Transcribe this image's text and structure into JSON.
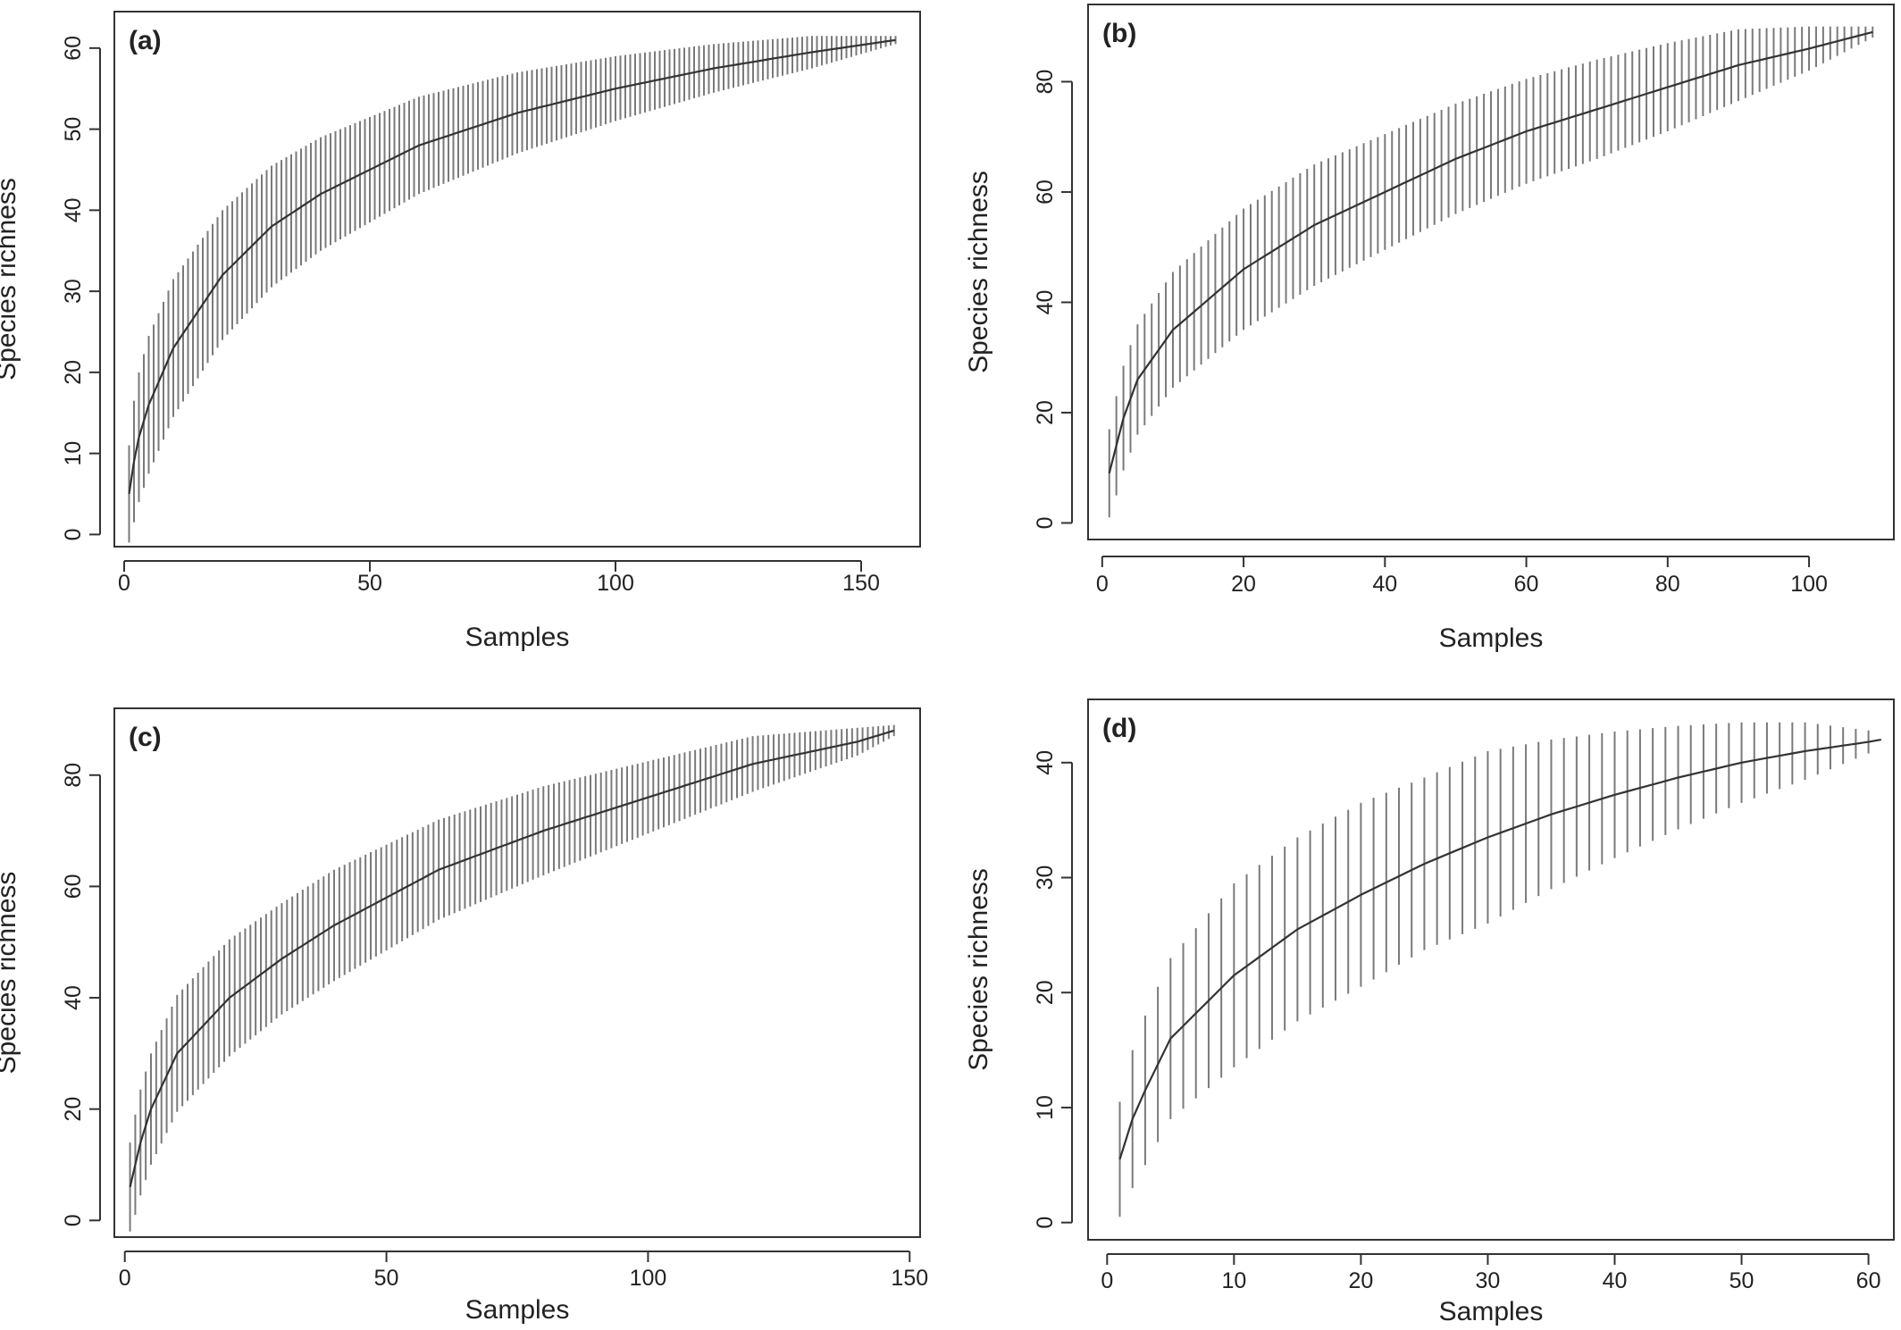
{
  "figure": {
    "colors": {
      "ink": "#333333",
      "error_bar": "#7a7a7a",
      "background": "#ffffff"
    }
  },
  "chart_data": [
    {
      "panel_label": "(a)",
      "type": "line",
      "curve": "species accumulation (mean) with ±SD vertical error bars",
      "xlabel": "Samples",
      "ylabel": "Species richness",
      "xlim": [
        -2,
        162
      ],
      "ylim": [
        -1.5,
        64.5
      ],
      "xticks": [
        0,
        50,
        100,
        150
      ],
      "yticks": [
        0,
        10,
        20,
        30,
        40,
        50,
        60
      ],
      "n_samples": 157,
      "x": [
        1,
        2,
        3,
        5,
        10,
        20,
        30,
        40,
        50,
        60,
        80,
        100,
        120,
        140,
        157
      ],
      "y": [
        5,
        9,
        12,
        16,
        23,
        32,
        38,
        42,
        45,
        48,
        52,
        55,
        57.5,
        59.5,
        61
      ],
      "sd": [
        6,
        7.5,
        8,
        8.5,
        8.5,
        8,
        7.5,
        7,
        6.5,
        6,
        5,
        4,
        3,
        2,
        0.5
      ]
    },
    {
      "panel_label": "(b)",
      "type": "line",
      "curve": "species accumulation (mean) with ±SD vertical error bars",
      "xlabel": "Samples",
      "ylabel": "Species richness",
      "xlim": [
        -2,
        112
      ],
      "ylim": [
        -3,
        94
      ],
      "xticks": [
        0,
        20,
        40,
        60,
        80,
        100
      ],
      "yticks": [
        0,
        20,
        40,
        60,
        80
      ],
      "n_samples": 109,
      "x": [
        1,
        2,
        3,
        5,
        10,
        20,
        30,
        40,
        50,
        60,
        70,
        80,
        90,
        100,
        109
      ],
      "y": [
        9,
        14,
        19,
        26,
        35,
        46,
        54,
        60,
        66,
        71,
        75,
        79,
        83,
        86,
        89
      ],
      "sd": [
        8,
        9,
        9.5,
        10,
        10.5,
        11,
        11,
        10.5,
        10,
        9.5,
        9,
        8,
        6.5,
        4,
        1
      ]
    },
    {
      "panel_label": "(c)",
      "type": "line",
      "curve": "species accumulation (mean) with ±SD vertical error bars",
      "xlabel": "Samples",
      "ylabel": "Species richness",
      "xlim": [
        -2,
        152
      ],
      "ylim": [
        -3,
        92
      ],
      "xticks": [
        0,
        50,
        100,
        150
      ],
      "yticks": [
        0,
        20,
        40,
        60,
        80
      ],
      "n_samples": 147,
      "x": [
        1,
        2,
        3,
        5,
        10,
        20,
        30,
        40,
        50,
        60,
        80,
        100,
        120,
        140,
        147
      ],
      "y": [
        6,
        10,
        14,
        20,
        30,
        40,
        47,
        53,
        58,
        63,
        70,
        76,
        82,
        86,
        88
      ],
      "sd": [
        8,
        9,
        9.5,
        10,
        10.5,
        10.5,
        10,
        10,
        9.5,
        9,
        8,
        6.5,
        5,
        2.5,
        1
      ]
    },
    {
      "panel_label": "(d)",
      "type": "line",
      "curve": "species accumulation (mean) with ±SD vertical error bars",
      "xlabel": "Samples",
      "ylabel": "Species richness",
      "xlim": [
        -1.5,
        62
      ],
      "ylim": [
        -1.5,
        45.5
      ],
      "xticks": [
        0,
        10,
        20,
        30,
        40,
        50,
        60
      ],
      "yticks": [
        0,
        10,
        20,
        30,
        40
      ],
      "n_samples": 61,
      "x": [
        1,
        2,
        3,
        5,
        10,
        15,
        20,
        25,
        30,
        35,
        40,
        45,
        50,
        55,
        60,
        61
      ],
      "y": [
        5.5,
        9,
        11.5,
        16,
        21.5,
        25.5,
        28.5,
        31.2,
        33.5,
        35.5,
        37.2,
        38.7,
        40,
        41,
        41.8,
        42
      ],
      "sd": [
        5,
        6,
        6.5,
        7,
        8,
        8,
        8,
        7.5,
        7.5,
        6.5,
        5.5,
        4.5,
        3.5,
        2.5,
        1,
        0
      ]
    }
  ]
}
